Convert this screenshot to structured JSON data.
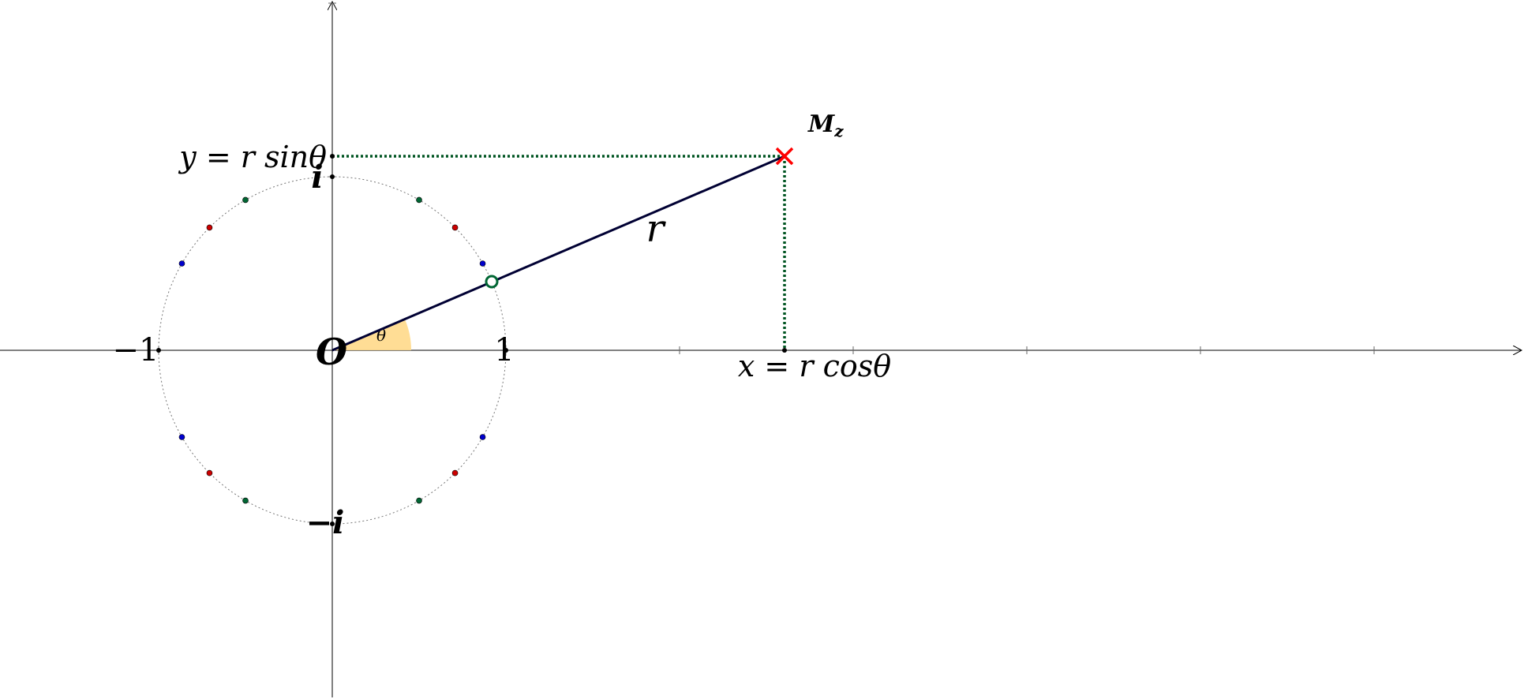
{
  "diagram": {
    "origin_label": "O",
    "unit_labels": {
      "neg_one": "−1",
      "one": "1"
    },
    "imag_labels": {
      "i": "i",
      "neg_i": "−i"
    },
    "point_label": "M",
    "point_label_sub": "z",
    "radius_label": "r",
    "angle_label": "θ",
    "x_projection_label": "x = r cosθ",
    "y_projection_label": "y = r sinθ"
  },
  "colors": {
    "axis": "#000000",
    "unit_circle": "#777777",
    "radius_segment": "#000033",
    "projection": "#005522",
    "point_marker": "#ff0000",
    "imag_label": "#ff0000",
    "radius_label": "#0a3d8f",
    "angle_fill": "#ffd98a",
    "angle_label": "#f5c060",
    "intersection_marker": "#006633",
    "dot_green": "#006633",
    "dot_red": "#cc0000",
    "dot_blue": "#0000cc"
  },
  "unit_circle_points": {
    "green_deg": [
      60,
      120,
      240,
      300
    ],
    "red_deg": [
      45,
      135,
      225,
      315
    ],
    "blue_deg": [
      30,
      150,
      210,
      330
    ]
  }
}
